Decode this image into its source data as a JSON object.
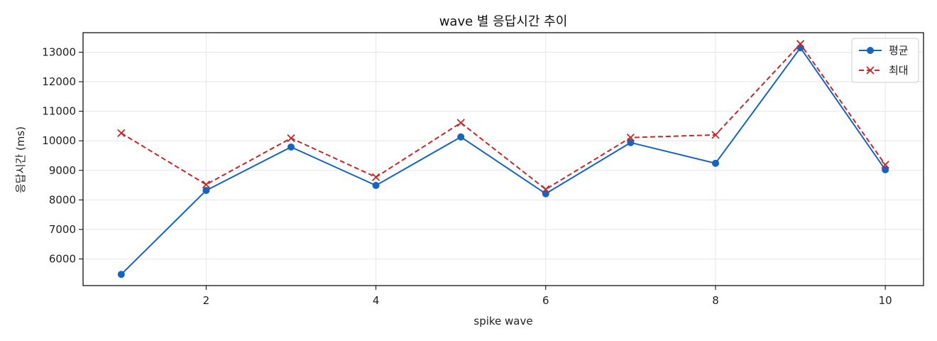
{
  "chart_data": {
    "type": "line",
    "title": "wave 별 응답시간 추이",
    "xlabel": "spike wave",
    "ylabel": "응답시간 (ms)",
    "x": [
      1,
      2,
      3,
      4,
      5,
      6,
      7,
      8,
      9,
      10
    ],
    "x_ticks": [
      2,
      4,
      6,
      8,
      10
    ],
    "y_ticks": [
      6000,
      7000,
      8000,
      9000,
      10000,
      11000,
      12000,
      13000
    ],
    "xlim": [
      0.55,
      10.45
    ],
    "ylim": [
      5100,
      13660
    ],
    "grid": true,
    "legend_position": "top-right",
    "series": [
      {
        "name": "평균",
        "color": "#1565c0",
        "marker": "circle",
        "line_style": "solid",
        "values": [
          5480,
          8320,
          9790,
          8490,
          10130,
          8210,
          9940,
          9240,
          13150,
          9020
        ]
      },
      {
        "name": "최대",
        "color": "#c62828",
        "marker": "x",
        "line_style": "dashed",
        "values": [
          10260,
          8520,
          10090,
          8770,
          10610,
          8360,
          10110,
          10200,
          13280,
          9190
        ]
      }
    ]
  }
}
